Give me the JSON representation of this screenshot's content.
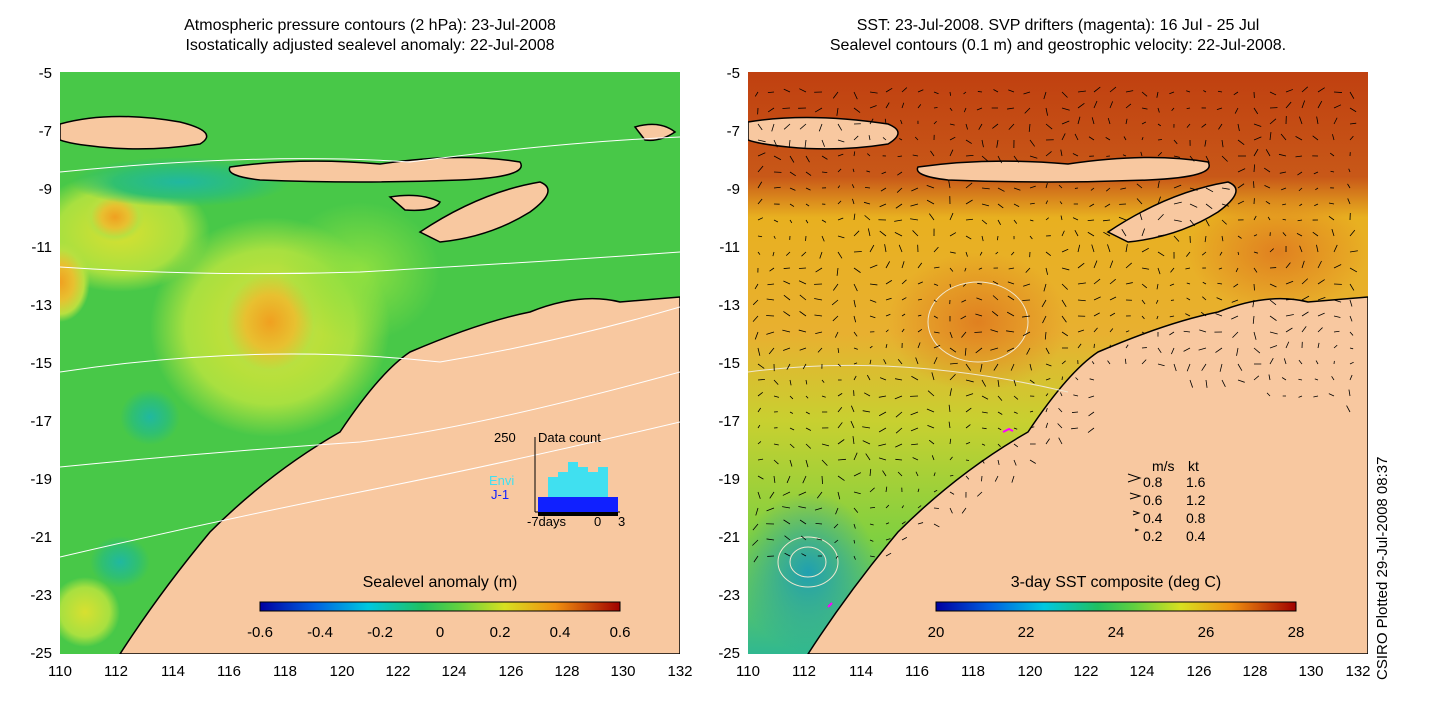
{
  "left_panel": {
    "title_line1": "Atmospheric pressure contours (2 hPa): 23-Jul-2008",
    "title_line2": "Isostatically adjusted sealevel anomaly: 22-Jul-2008",
    "colorbar": {
      "title": "Sealevel anomaly (m)",
      "labels": [
        "-0.6",
        "-0.4",
        "-0.2",
        "0",
        "0.2",
        "0.4",
        "0.6"
      ],
      "range": [
        -0.6,
        0.6
      ]
    },
    "inset": {
      "y_label": "250",
      "title": "Data count",
      "series": [
        "Envi",
        "J-1"
      ],
      "x_labels": [
        "-7days",
        "0",
        "3"
      ],
      "colors": {
        "Envi": "#40e0f0",
        "J-1": "#1020ff"
      }
    }
  },
  "right_panel": {
    "title_line1": "SST: 23-Jul-2008. SVP drifters (magenta): 16 Jul - 25 Jul",
    "title_line2": "Sealevel contours (0.1 m) and geostrophic velocity: 22-Jul-2008.",
    "colorbar": {
      "title": "3-day SST composite (deg C)",
      "labels": [
        "20",
        "22",
        "24",
        "26",
        "28"
      ],
      "range": [
        20,
        28
      ]
    },
    "velocity_legend": {
      "headers": [
        "m/s",
        "kt"
      ],
      "rows": [
        {
          "ms": "0.8",
          "kt": "1.6"
        },
        {
          "ms": "0.6",
          "kt": "1.2"
        },
        {
          "ms": "0.4",
          "kt": "0.8"
        },
        {
          "ms": "0.2",
          "kt": "0.4"
        }
      ]
    }
  },
  "axes": {
    "x_ticks": [
      "110",
      "112",
      "114",
      "116",
      "118",
      "120",
      "122",
      "124",
      "126",
      "128",
      "130",
      "132"
    ],
    "y_ticks": [
      "-5",
      "-7",
      "-9",
      "-11",
      "-13",
      "-15",
      "-17",
      "-19",
      "-21",
      "-23",
      "-25"
    ],
    "lon_range": [
      110,
      132
    ],
    "lat_range": [
      -25,
      -5
    ]
  },
  "credit": "CSIRO Plotted 29-Jul-2008 08:37",
  "colors": {
    "land": "#f8c8a0",
    "sla_background": "#48c848",
    "sst_background": "#d89830"
  }
}
